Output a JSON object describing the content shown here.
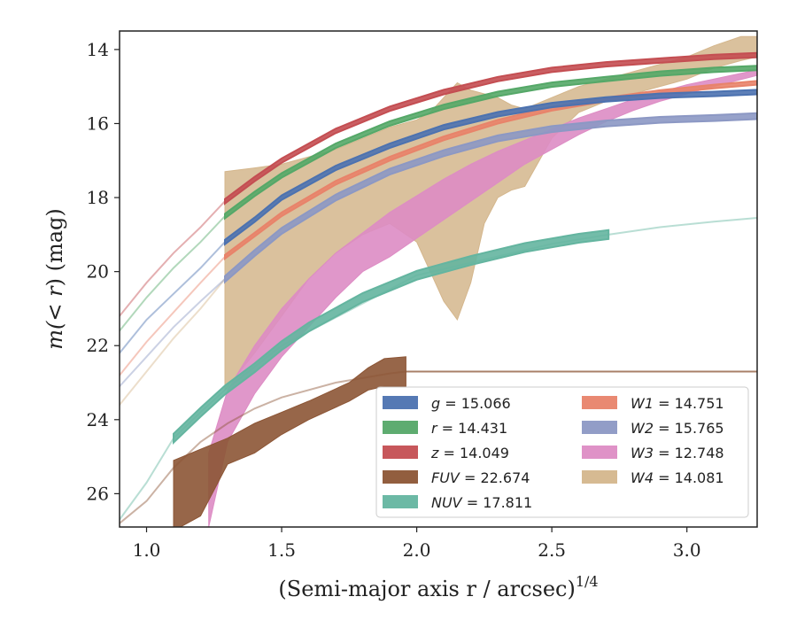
{
  "chart_data": {
    "type": "line",
    "xlabel": "(Semi-major axis r / arcsec)",
    "xlabel_sup": "1/4",
    "ylabel": "m(< r) (mag)",
    "ylabel_parts": {
      "m": "m(",
      "lt": "< r",
      "rest": ") (mag)"
    },
    "xlim": [
      0.9,
      3.26
    ],
    "ylim": [
      26.9,
      13.5
    ],
    "y_inverted": true,
    "xticks": [
      1.0,
      1.5,
      2.0,
      2.5,
      3.0
    ],
    "xtick_labels": [
      "1.0",
      "1.5",
      "2.0",
      "2.5",
      "3.0"
    ],
    "yticks": [
      14,
      16,
      18,
      20,
      22,
      24,
      26
    ],
    "ytick_labels": [
      "14",
      "16",
      "18",
      "20",
      "22",
      "24",
      "26"
    ],
    "grid": false,
    "legend_position": "lower-right",
    "series": [
      {
        "name": "g",
        "label": "g = 15.066",
        "color": "#4c72b0",
        "band_width": 0.06,
        "x": [
          1.29,
          1.4,
          1.5,
          1.7,
          1.9,
          2.1,
          2.3,
          2.5,
          2.7,
          2.9,
          3.1,
          3.26
        ],
        "y": [
          19.2,
          18.6,
          18.0,
          17.2,
          16.6,
          16.1,
          15.75,
          15.5,
          15.35,
          15.25,
          15.2,
          15.15
        ],
        "faint_x": [
          0.9,
          1.0,
          1.1,
          1.2,
          1.29
        ],
        "faint_y": [
          22.2,
          21.3,
          20.6,
          19.9,
          19.2
        ]
      },
      {
        "name": "r",
        "label": "r = 14.431",
        "color": "#55a868",
        "band_width": 0.06,
        "x": [
          1.29,
          1.4,
          1.5,
          1.7,
          1.9,
          2.1,
          2.3,
          2.5,
          2.7,
          2.9,
          3.1,
          3.26
        ],
        "y": [
          18.5,
          17.9,
          17.4,
          16.6,
          16.0,
          15.55,
          15.2,
          14.95,
          14.8,
          14.65,
          14.55,
          14.5
        ],
        "faint_x": [
          0.9,
          1.0,
          1.1,
          1.2,
          1.29
        ],
        "faint_y": [
          21.6,
          20.7,
          19.9,
          19.2,
          18.5
        ]
      },
      {
        "name": "z",
        "label": "z = 14.049",
        "color": "#c44e52",
        "band_width": 0.06,
        "x": [
          1.29,
          1.4,
          1.5,
          1.7,
          1.9,
          2.1,
          2.3,
          2.5,
          2.7,
          2.9,
          3.1,
          3.26
        ],
        "y": [
          18.1,
          17.5,
          17.0,
          16.2,
          15.6,
          15.15,
          14.8,
          14.55,
          14.4,
          14.3,
          14.2,
          14.15
        ],
        "faint_x": [
          0.9,
          1.0,
          1.1,
          1.2,
          1.29
        ],
        "faint_y": [
          21.2,
          20.3,
          19.5,
          18.8,
          18.1
        ]
      },
      {
        "name": "FUV",
        "label": "FUV = 22.674",
        "color": "#8c5535",
        "band_width": 0.0,
        "band_x": [
          1.1,
          1.2,
          1.3,
          1.4,
          1.5,
          1.6,
          1.75,
          1.82,
          1.88,
          1.96
        ],
        "band_upper": [
          25.1,
          24.8,
          24.5,
          24.1,
          23.8,
          23.5,
          23.0,
          22.6,
          22.35,
          22.3
        ],
        "band_lower": [
          27.0,
          26.6,
          25.2,
          24.9,
          24.4,
          24.0,
          23.5,
          23.2,
          23.1,
          23.1
        ],
        "faint_x": [
          0.9,
          1.0,
          1.1,
          1.2,
          1.3,
          1.4,
          1.5,
          1.7,
          1.9,
          1.96
        ],
        "faint_y": [
          26.8,
          26.2,
          25.3,
          24.6,
          24.1,
          23.7,
          23.4,
          23.0,
          22.75,
          22.7
        ],
        "tail_x": [
          1.96,
          3.26
        ],
        "tail_y": [
          22.7,
          22.7
        ]
      },
      {
        "name": "NUV",
        "label": "NUV = 17.811",
        "color": "#64b5a0",
        "band_width": 0.12,
        "x": [
          1.1,
          1.2,
          1.29,
          1.4,
          1.5,
          1.6,
          1.8,
          2.0,
          2.2,
          2.4,
          2.6,
          2.71
        ],
        "y": [
          24.5,
          23.8,
          23.2,
          22.6,
          22.0,
          21.5,
          20.7,
          20.1,
          19.7,
          19.35,
          19.1,
          19.0
        ],
        "faint_x": [
          0.9,
          1.0,
          1.1,
          1.2,
          1.29,
          1.5,
          2.0,
          2.5,
          2.71,
          2.9,
          3.1,
          3.26
        ],
        "faint_y": [
          26.7,
          25.7,
          24.5,
          23.8,
          23.2,
          22.0,
          20.1,
          19.25,
          19.0,
          18.8,
          18.65,
          18.55
        ]
      },
      {
        "name": "W1",
        "label": "W1 = 14.751",
        "color": "#e8836a",
        "band_width": 0.05,
        "x": [
          1.29,
          1.4,
          1.5,
          1.7,
          1.9,
          2.1,
          2.3,
          2.5,
          2.7,
          2.9,
          3.1,
          3.26
        ],
        "y": [
          19.6,
          19.0,
          18.45,
          17.6,
          16.95,
          16.4,
          15.95,
          15.6,
          15.35,
          15.15,
          15.0,
          14.9
        ],
        "faint_x": [
          0.9,
          1.0,
          1.1,
          1.2,
          1.29
        ],
        "faint_y": [
          22.8,
          21.9,
          21.1,
          20.3,
          19.6
        ]
      },
      {
        "name": "W2",
        "label": "W2 = 15.765",
        "color": "#8c98c4",
        "band_width": 0.08,
        "x": [
          1.29,
          1.4,
          1.5,
          1.7,
          1.9,
          2.1,
          2.3,
          2.5,
          2.7,
          2.9,
          3.1,
          3.26
        ],
        "y": [
          20.2,
          19.5,
          18.9,
          18.0,
          17.3,
          16.8,
          16.4,
          16.15,
          16.0,
          15.9,
          15.85,
          15.8
        ],
        "faint_x": [
          0.9,
          1.0,
          1.1,
          1.2,
          1.29
        ],
        "faint_y": [
          23.1,
          22.3,
          21.5,
          20.8,
          20.2
        ]
      },
      {
        "name": "W3",
        "label": "W3 = 12.748",
        "color": "#dd8cc4",
        "band_x": [
          1.23,
          1.3,
          1.4,
          1.5,
          1.6,
          1.7,
          1.8,
          1.9,
          2.0,
          2.1,
          2.2,
          2.3,
          2.4,
          2.5,
          2.6,
          2.7,
          2.8,
          2.9,
          3.0,
          3.1,
          3.26
        ],
        "band_upper": [
          24.9,
          23.2,
          22.0,
          21.0,
          20.2,
          19.5,
          18.95,
          18.4,
          17.95,
          17.5,
          17.1,
          16.75,
          16.45,
          16.15,
          15.85,
          15.6,
          15.35,
          15.15,
          14.95,
          14.8,
          14.55
        ],
        "band_lower": [
          26.9,
          24.6,
          23.3,
          22.3,
          21.5,
          20.7,
          20.0,
          19.6,
          19.1,
          18.6,
          18.1,
          17.6,
          17.1,
          16.7,
          16.3,
          15.95,
          15.65,
          15.4,
          15.2,
          15.0,
          14.7
        ],
        "faint_x": [
          1.15,
          1.23
        ],
        "faint_y": [
          27.0,
          26.9
        ]
      },
      {
        "name": "W4",
        "label": "W4 = 14.081",
        "color": "#d4b68c",
        "band_x": [
          1.29,
          1.4,
          1.5,
          1.6,
          1.7,
          1.8,
          1.9,
          2.0,
          2.05,
          2.1,
          2.15,
          2.2,
          2.25,
          2.3,
          2.35,
          2.4,
          2.5,
          2.6,
          2.7,
          2.8,
          2.9,
          3.0,
          3.1,
          3.2,
          3.26
        ],
        "band_upper": [
          17.3,
          17.2,
          17.1,
          16.9,
          16.7,
          16.4,
          16.1,
          15.9,
          15.7,
          15.3,
          14.9,
          15.1,
          15.2,
          15.3,
          15.5,
          15.6,
          15.3,
          15.0,
          14.8,
          14.6,
          14.4,
          14.2,
          13.9,
          13.65,
          13.65
        ],
        "band_lower": [
          23.2,
          22.2,
          21.2,
          20.2,
          19.5,
          19.0,
          18.7,
          19.2,
          20.0,
          20.8,
          21.3,
          20.3,
          18.7,
          18.0,
          17.8,
          17.7,
          16.4,
          15.7,
          15.4,
          15.2,
          15.0,
          14.8,
          14.5,
          14.3,
          14.2
        ],
        "faint_x": [
          0.9,
          1.0,
          1.1,
          1.2,
          1.29
        ],
        "faint_y": [
          23.6,
          22.7,
          21.8,
          21.0,
          20.2
        ]
      }
    ]
  }
}
